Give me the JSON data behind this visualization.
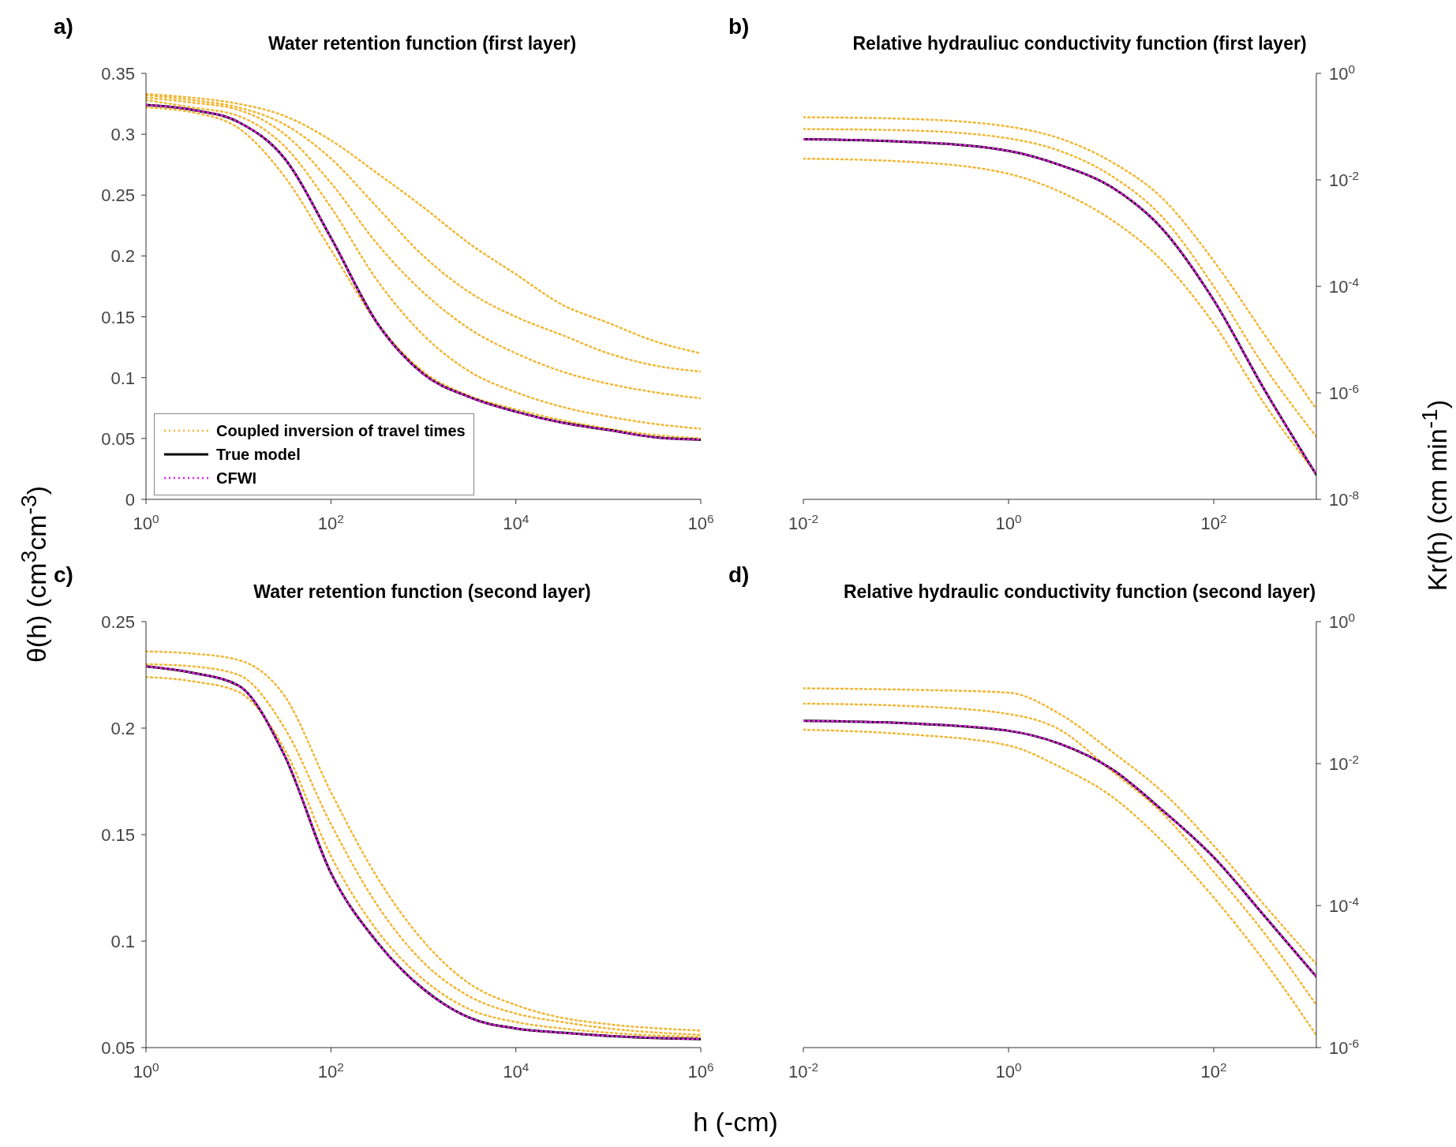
{
  "chart_data": [
    {
      "type": "line",
      "title": "Water retention function (first layer)",
      "ylabel": "θ(h)  (cm$^{3}$cm$^{-3}$)",
      "annotations": [
        "a)"
      ],
      "legend": "bottom left",
      "log": "x",
      "x": [
        1,
        3.16,
        10,
        31.6,
        100,
        316,
        1000,
        3162,
        10000,
        31623,
        100000,
        316228,
        1000000
      ],
      "xlim": [
        1,
        1000000
      ],
      "xticks": [
        {
          "value": 1,
          "label": "10$^{0}$"
        },
        {
          "value": 100,
          "label": "10$^{2}$"
        },
        {
          "value": 10000,
          "label": "10$^{4}$"
        },
        {
          "value": 1000000,
          "label": "10$^{6}$"
        }
      ],
      "ylim": [
        0,
        0.35
      ],
      "yticks": [
        0,
        0.05,
        0.1,
        0.15,
        0.2,
        0.25,
        0.3,
        0.35
      ],
      "series": [
        {
          "name": "Coupled inversion of travel times",
          "color": "#f2b632",
          "line_style": "dotted",
          "values": [
            0.333,
            0.33,
            0.325,
            0.315,
            0.295,
            0.268,
            0.24,
            0.21,
            0.185,
            0.16,
            0.145,
            0.13,
            0.12
          ]
        },
        {
          "color": "#f2b632",
          "line_style": "dotted",
          "values": [
            0.332,
            0.328,
            0.322,
            0.308,
            0.28,
            0.24,
            0.2,
            0.17,
            0.15,
            0.135,
            0.12,
            0.11,
            0.105
          ]
        },
        {
          "color": "#f2b632",
          "line_style": "dotted",
          "values": [
            0.33,
            0.326,
            0.32,
            0.3,
            0.26,
            0.21,
            0.17,
            0.14,
            0.12,
            0.105,
            0.095,
            0.088,
            0.083
          ]
        },
        {
          "color": "#f2b632",
          "line_style": "dotted",
          "values": [
            0.328,
            0.322,
            0.315,
            0.29,
            0.24,
            0.18,
            0.135,
            0.105,
            0.088,
            0.076,
            0.068,
            0.062,
            0.058
          ]
        },
        {
          "color": "#f2b632",
          "line_style": "dotted",
          "values": [
            0.322,
            0.318,
            0.305,
            0.265,
            0.205,
            0.145,
            0.105,
            0.085,
            0.074,
            0.065,
            0.058,
            0.053,
            0.05
          ]
        },
        {
          "name": "True model",
          "color": "#000000",
          "line_style": "solid",
          "values": [
            0.324,
            0.32,
            0.31,
            0.28,
            0.215,
            0.145,
            0.103,
            0.084,
            0.072,
            0.063,
            0.057,
            0.051,
            0.049
          ]
        },
        {
          "name": "CFWI",
          "color": "#e020e0",
          "line_style": "dotted",
          "values": [
            0.324,
            0.32,
            0.31,
            0.28,
            0.215,
            0.145,
            0.103,
            0.084,
            0.072,
            0.063,
            0.057,
            0.051,
            0.049
          ]
        }
      ]
    },
    {
      "type": "line",
      "title": "Relative hydrauliuc conductivity function (first layer)",
      "ylabel": "Kr(h) (cm min$^{-1}$)",
      "annotations": [
        "b)"
      ],
      "log": "xy",
      "x": [
        0.01,
        0.1,
        1,
        3.16,
        10,
        31.6,
        100,
        316,
        1000
      ],
      "xlim": [
        0.01,
        1000
      ],
      "xticks": [
        {
          "value": 0.01,
          "label": "10$^{-2}$"
        },
        {
          "value": 1,
          "label": "10$^{0}$"
        },
        {
          "value": 100,
          "label": "10$^{2}$"
        }
      ],
      "ylim": [
        1e-08,
        1
      ],
      "yticks": [
        {
          "value": 1e-08,
          "label": "10$^{-8}$"
        },
        {
          "value": 1e-06,
          "label": "10$^{-6}$"
        },
        {
          "value": 0.0001,
          "label": "10$^{-4}$"
        },
        {
          "value": 0.01,
          "label": "10$^{-2}$"
        },
        {
          "value": 1,
          "label": "10$^{0}$"
        }
      ],
      "series": [
        {
          "color": "#f2b632",
          "line_style": "dotted",
          "values": [
            0.15,
            0.14,
            0.1,
            0.06,
            0.022,
            0.0045,
            0.0003,
            1.2e-05,
            5e-07
          ]
        },
        {
          "color": "#f2b632",
          "line_style": "dotted",
          "values": [
            0.09,
            0.085,
            0.06,
            0.035,
            0.012,
            0.002,
            0.0001,
            3e-06,
            1.5e-07
          ]
        },
        {
          "color": "#f2b632",
          "line_style": "dotted",
          "values": [
            0.025,
            0.022,
            0.013,
            0.006,
            0.0018,
            0.0003,
            2e-05,
            6e-07,
            3e-08
          ]
        },
        {
          "color": "#000000",
          "line_style": "solid",
          "values": [
            0.058,
            0.052,
            0.035,
            0.019,
            0.0074,
            0.0012,
            5.5e-05,
            1.1e-06,
            2.9e-08
          ]
        },
        {
          "color": "#e020e0",
          "line_style": "dotted",
          "values": [
            0.058,
            0.052,
            0.035,
            0.019,
            0.0074,
            0.0012,
            5.5e-05,
            1.1e-06,
            2.9e-08
          ]
        }
      ]
    },
    {
      "type": "line",
      "title": "Water retention function (second layer)",
      "xlabel": "h (-cm)",
      "annotations": [
        "c)"
      ],
      "log": "x",
      "x": [
        1,
        3.16,
        10,
        31.6,
        100,
        316,
        1000,
        3162,
        10000,
        31623,
        100000,
        1000000
      ],
      "xlim": [
        1,
        1000000
      ],
      "xticks": [
        {
          "value": 1,
          "label": "10$^{0}$"
        },
        {
          "value": 100,
          "label": "10$^{2}$"
        },
        {
          "value": 10000,
          "label": "10$^{4}$"
        },
        {
          "value": 1000000,
          "label": "10$^{6}$"
        }
      ],
      "ylim": [
        0.05,
        0.25
      ],
      "yticks": [
        0.05,
        0.1,
        0.15,
        0.2,
        0.25
      ],
      "series": [
        {
          "color": "#f2b632",
          "line_style": "dotted",
          "values": [
            0.236,
            0.235,
            0.232,
            0.215,
            0.17,
            0.13,
            0.1,
            0.08,
            0.07,
            0.064,
            0.061,
            0.058
          ]
        },
        {
          "color": "#f2b632",
          "line_style": "dotted",
          "values": [
            0.23,
            0.229,
            0.225,
            0.2,
            0.155,
            0.117,
            0.09,
            0.074,
            0.066,
            0.062,
            0.059,
            0.056
          ]
        },
        {
          "color": "#f2b632",
          "line_style": "dotted",
          "values": [
            0.224,
            0.222,
            0.217,
            0.19,
            0.14,
            0.105,
            0.082,
            0.068,
            0.062,
            0.059,
            0.057,
            0.055
          ]
        },
        {
          "color": "#000000",
          "line_style": "solid",
          "values": [
            0.229,
            0.226,
            0.22,
            0.187,
            0.132,
            0.0995,
            0.0775,
            0.064,
            0.059,
            0.057,
            0.0555,
            0.054
          ]
        },
        {
          "color": "#e020e0",
          "line_style": "dotted",
          "values": [
            0.229,
            0.226,
            0.22,
            0.187,
            0.132,
            0.0995,
            0.0775,
            0.064,
            0.059,
            0.057,
            0.0555,
            0.054
          ]
        }
      ]
    },
    {
      "type": "line",
      "title": "Relative hydraulic conductivity function (second layer)",
      "annotations": [
        "d)"
      ],
      "log": "xy",
      "x": [
        0.01,
        0.1,
        1,
        3.16,
        10,
        31.6,
        100,
        316,
        1000
      ],
      "xlim": [
        0.01,
        1000
      ],
      "xticks": [
        {
          "value": 0.01,
          "label": "10$^{-2}$"
        },
        {
          "value": 1,
          "label": "10$^{0}$"
        },
        {
          "value": 100,
          "label": "10$^{2}$"
        }
      ],
      "ylim": [
        1e-06,
        1
      ],
      "yticks": [
        {
          "value": 1e-06,
          "label": "10$^{-6}$"
        },
        {
          "value": 0.0001,
          "label": "10$^{-4}$"
        },
        {
          "value": 0.01,
          "label": "10$^{-2}$"
        },
        {
          "value": 1,
          "label": "10$^{0}$"
        }
      ],
      "series": [
        {
          "color": "#f2b632",
          "line_style": "dotted",
          "values": [
            0.115,
            0.11,
            0.1,
            0.05,
            0.015,
            0.004,
            0.0007,
            0.0001,
            1.5e-05
          ]
        },
        {
          "color": "#f2b632",
          "line_style": "dotted",
          "values": [
            0.07,
            0.065,
            0.05,
            0.03,
            0.008,
            0.002,
            0.0003,
            4e-05,
            4e-06
          ]
        },
        {
          "color": "#f2b632",
          "line_style": "dotted",
          "values": [
            0.03,
            0.026,
            0.018,
            0.009,
            0.0035,
            0.0008,
            0.00013,
            1.6e-05,
            1.5e-06
          ]
        },
        {
          "color": "#000000",
          "line_style": "solid",
          "values": [
            0.04,
            0.037,
            0.029,
            0.019,
            0.0085,
            0.0022,
            0.00048,
            7e-05,
            1e-05
          ]
        },
        {
          "color": "#e020e0",
          "line_style": "dotted",
          "values": [
            0.04,
            0.037,
            0.029,
            0.019,
            0.0085,
            0.0022,
            0.00048,
            7e-05,
            1e-05
          ]
        }
      ]
    }
  ]
}
